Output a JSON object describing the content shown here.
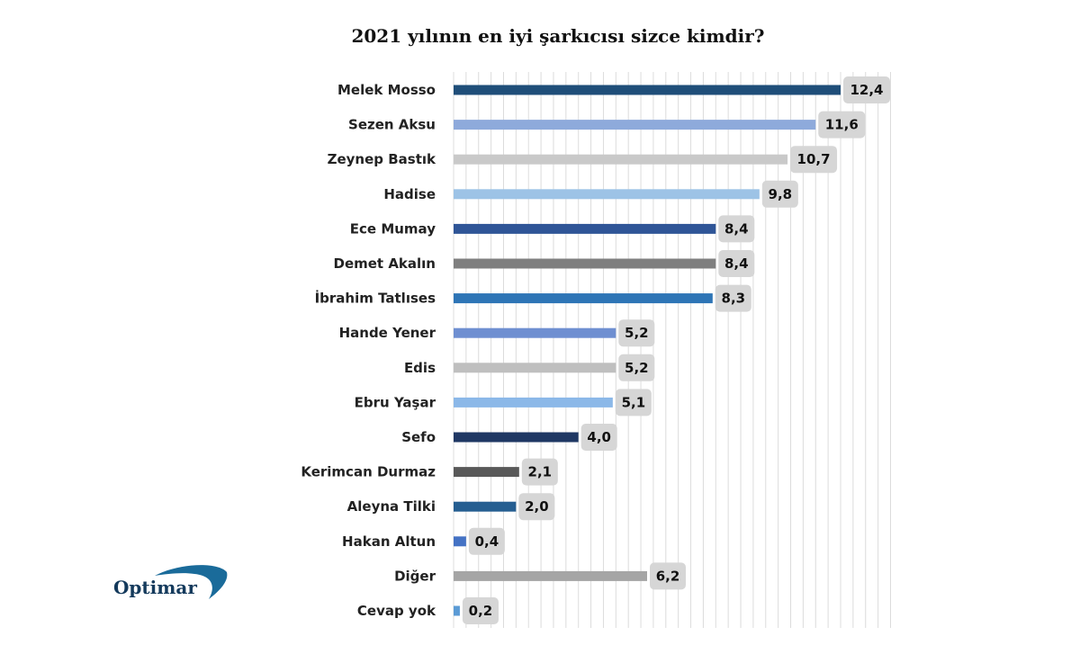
{
  "chart_data": {
    "type": "bar",
    "orientation": "horizontal",
    "title": "2021 yılının en iyi şarkıcısı sizce kimdir?",
    "categories": [
      "Melek Mosso",
      "Sezen Aksu",
      "Zeynep Bastık",
      "Hadise",
      "Ece Mumay",
      "Demet Akalın",
      "İbrahim Tatlıses",
      "Hande Yener",
      "Edis",
      "Ebru Yaşar",
      "Sefo",
      "Kerimcan Durmaz",
      "Aleyna Tilki",
      "Hakan Altun",
      "Diğer",
      "Cevap yok"
    ],
    "values": [
      12.4,
      11.6,
      10.7,
      9.8,
      8.4,
      8.4,
      8.3,
      5.2,
      5.2,
      5.1,
      4.0,
      2.1,
      2.0,
      0.4,
      6.2,
      0.2
    ],
    "value_labels": [
      "12,4",
      "11,6",
      "10,7",
      "9,8",
      "8,4",
      "8,4",
      "8,3",
      "5,2",
      "5,2",
      "5,1",
      "4,0",
      "2,1",
      "2,0",
      "0,4",
      "6,2",
      "0,2"
    ],
    "colors": [
      "#1f4e79",
      "#8eaadb",
      "#c9c9c9",
      "#9dc3e6",
      "#2f5597",
      "#7f7f7f",
      "#2e75b6",
      "#6f8fd1",
      "#bfbfbf",
      "#8bb8e8",
      "#203864",
      "#595959",
      "#255e91",
      "#4472c4",
      "#a5a5a5",
      "#5b9bd5"
    ],
    "xlim": [
      0,
      12.4
    ],
    "grid": true,
    "legend": "none"
  },
  "logo": {
    "text": "Optimar",
    "colors": {
      "swoosh": "#1a6b9a",
      "text": "#143a5c"
    }
  }
}
